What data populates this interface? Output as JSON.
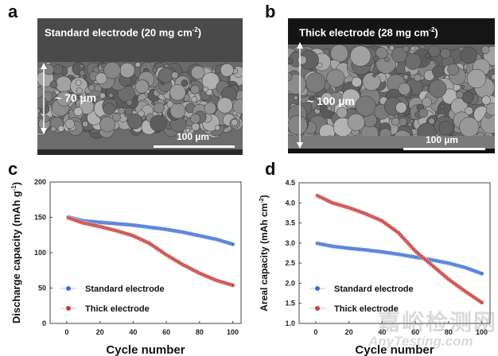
{
  "panels": {
    "a": {
      "letter": "a",
      "title": "Standard electrode (20 mg cm",
      "title_sup": "-2",
      "title_end": ")",
      "thickness": "~ 70 µm",
      "scale": "100 µm"
    },
    "b": {
      "letter": "b",
      "title": "Thick electrode (28 mg cm",
      "title_sup": "-2",
      "title_end": ")",
      "thickness": "~ 100 µm",
      "scale": "100 µm"
    },
    "c": {
      "letter": "c"
    },
    "d": {
      "letter": "d"
    }
  },
  "watermark": {
    "cn": "嘉峪检测网",
    "en": "AnyTesting.com"
  },
  "chart_data": [
    {
      "type": "line",
      "xlabel": "Cycle number",
      "ylabel": "Discharge capacity (mAh g-1)",
      "ylabel_main": "Discharge capacity (mAh g",
      "ylabel_sup": "-1",
      "ylabel_end": ")",
      "xlim": [
        -10,
        105
      ],
      "ylim": [
        0,
        200
      ],
      "xticks": [
        0,
        20,
        40,
        60,
        80,
        100
      ],
      "yticks": [
        0,
        50,
        100,
        150,
        200
      ],
      "legend": "bottom-left",
      "x": [
        0,
        10,
        20,
        30,
        40,
        50,
        60,
        70,
        80,
        90,
        100
      ],
      "series": [
        {
          "name": "Standard electrode",
          "color": "#3f6fd6",
          "values": [
            151,
            145,
            143,
            141,
            139,
            136,
            133,
            129,
            124,
            119,
            112
          ]
        },
        {
          "name": "Thick electrode",
          "color": "#c8403c",
          "values": [
            150,
            142,
            137,
            131,
            124,
            113,
            97,
            83,
            71,
            61,
            54
          ]
        }
      ]
    },
    {
      "type": "line",
      "xlabel": "Cycle number",
      "ylabel": "Areal capacity (mAh cm-2)",
      "ylabel_main": "Areal capacity (mAh cm",
      "ylabel_sup": "-2",
      "ylabel_end": ")",
      "xlim": [
        -10,
        105
      ],
      "ylim": [
        1.0,
        4.5
      ],
      "xticks": [
        0,
        20,
        40,
        60,
        80,
        100
      ],
      "yticks": [
        1.0,
        1.5,
        2.0,
        2.5,
        3.0,
        3.5,
        4.0,
        4.5
      ],
      "legend": "bottom-left",
      "x": [
        0,
        10,
        20,
        30,
        40,
        50,
        60,
        70,
        80,
        90,
        100
      ],
      "series": [
        {
          "name": "Standard electrode",
          "color": "#3f6fd6",
          "values": [
            3.0,
            2.92,
            2.87,
            2.83,
            2.78,
            2.72,
            2.65,
            2.58,
            2.5,
            2.39,
            2.24
          ]
        },
        {
          "name": "Thick electrode",
          "color": "#c8403c",
          "values": [
            4.2,
            4.0,
            3.88,
            3.73,
            3.55,
            3.25,
            2.8,
            2.45,
            2.1,
            1.8,
            1.52
          ]
        }
      ]
    }
  ]
}
